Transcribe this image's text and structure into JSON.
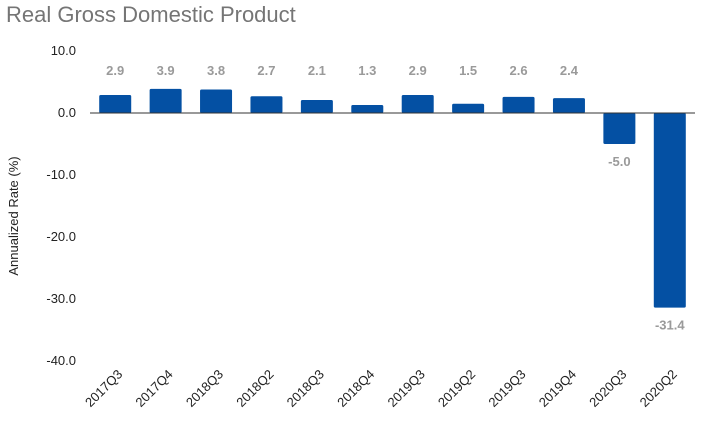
{
  "chart_data": {
    "type": "bar",
    "title": "Real Gross Domestic Product",
    "xlabel": "",
    "ylabel": "Annualized Rate (%)",
    "ylim": [
      -40,
      10
    ],
    "yticks": [
      10,
      0,
      -10,
      -20,
      -30,
      -40
    ],
    "ytick_labels": [
      "10.0",
      "0.0",
      "-10.0",
      "-20.0",
      "-30.0",
      "-40.0"
    ],
    "categories": [
      "2017Q3",
      "2017Q4",
      "2018Q3",
      "2018Q2",
      "2018Q3",
      "2018Q4",
      "2019Q3",
      "2019Q2",
      "2019Q3",
      "2019Q4",
      "2020Q3",
      "2020Q2"
    ],
    "values": [
      2.9,
      3.9,
      3.8,
      2.7,
      2.1,
      1.3,
      2.9,
      1.5,
      2.6,
      2.4,
      -5.0,
      -31.4
    ],
    "data_labels": [
      "2.9",
      "3.9",
      "3.8",
      "2.7",
      "2.1",
      "1.3",
      "2.9",
      "1.5",
      "2.6",
      "2.4",
      "-5.0",
      "-31.4"
    ],
    "grid": false,
    "legend": "none",
    "bar_color": "#0450a3",
    "label_color": "#9a9a9a"
  }
}
